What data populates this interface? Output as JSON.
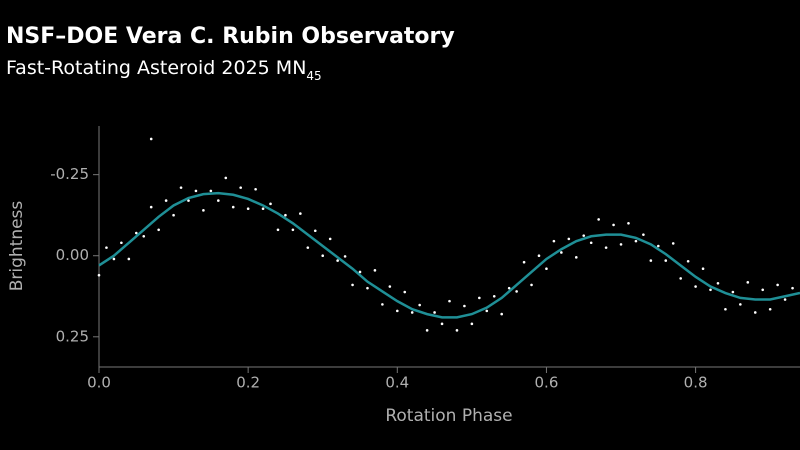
{
  "chart_data": {
    "type": "scatter",
    "title": "NSF–DOE Vera C. Rubin Observatory",
    "subtitle": "Fast-Rotating Asteroid 2025 MN",
    "subtitle_subscript": "45",
    "x_label": "Rotation Phase",
    "y_label": "Brightness",
    "xlim": [
      0,
      0.94
    ],
    "xticks": [
      {
        "value": 0,
        "label": "0.0"
      },
      0.2,
      0.4,
      0.6,
      0.8
    ],
    "ylim": [
      -0.4,
      0.34
    ],
    "y_inverted": true,
    "yticks": [
      -0.25,
      {
        "value": 0,
        "label": "0.00"
      },
      0.25
    ],
    "grid": false,
    "series": [
      {
        "type": "scatter",
        "color": "#ffffff",
        "x": [
          0.0,
          0.01,
          0.02,
          0.03,
          0.04,
          0.05,
          0.06,
          0.07,
          0.08,
          0.09,
          0.1,
          0.11,
          0.12,
          0.13,
          0.14,
          0.15,
          0.16,
          0.17,
          0.18,
          0.19,
          0.2,
          0.21,
          0.22,
          0.23,
          0.24,
          0.25,
          0.26,
          0.27,
          0.28,
          0.29,
          0.3,
          0.31,
          0.32,
          0.33,
          0.34,
          0.35,
          0.36,
          0.37,
          0.38,
          0.39,
          0.4,
          0.41,
          0.42,
          0.43,
          0.44,
          0.45,
          0.46,
          0.47,
          0.48,
          0.49,
          0.5,
          0.51,
          0.52,
          0.53,
          0.54,
          0.55,
          0.56,
          0.57,
          0.58,
          0.59,
          0.6,
          0.61,
          0.62,
          0.63,
          0.64,
          0.65,
          0.66,
          0.67,
          0.68,
          0.69,
          0.7,
          0.71,
          0.72,
          0.73,
          0.74,
          0.75,
          0.76,
          0.77,
          0.78,
          0.79,
          0.8,
          0.81,
          0.82,
          0.83,
          0.84,
          0.85,
          0.86,
          0.87,
          0.88,
          0.89,
          0.9,
          0.91,
          0.92,
          0.93,
          0.07
        ],
        "values": [
          0.06,
          -0.025,
          0.01,
          -0.04,
          0.01,
          -0.07,
          -0.06,
          -0.15,
          -0.08,
          -0.17,
          -0.125,
          -0.21,
          -0.17,
          -0.2,
          -0.14,
          -0.2,
          -0.17,
          -0.24,
          -0.15,
          -0.21,
          -0.145,
          -0.205,
          -0.145,
          -0.16,
          -0.08,
          -0.125,
          -0.08,
          -0.13,
          -0.025,
          -0.077,
          0.0,
          -0.052,
          0.015,
          0.002,
          0.09,
          0.05,
          0.1,
          0.045,
          0.15,
          0.095,
          0.17,
          0.112,
          0.175,
          0.152,
          0.23,
          0.175,
          0.21,
          0.14,
          0.23,
          0.155,
          0.21,
          0.13,
          0.17,
          0.125,
          0.18,
          0.1,
          0.11,
          0.02,
          0.09,
          0.0,
          0.04,
          -0.045,
          -0.01,
          -0.052,
          0.005,
          -0.062,
          -0.04,
          -0.112,
          -0.025,
          -0.095,
          -0.035,
          -0.1,
          -0.045,
          -0.065,
          0.015,
          -0.03,
          0.015,
          -0.038,
          0.07,
          0.017,
          0.095,
          0.04,
          0.105,
          0.085,
          0.165,
          0.112,
          0.15,
          0.082,
          0.175,
          0.105,
          0.165,
          0.09,
          0.135,
          0.1,
          -0.36
        ]
      },
      {
        "type": "line",
        "color": "#1f8f96",
        "x": [
          0.0,
          0.02,
          0.04,
          0.06,
          0.08,
          0.1,
          0.12,
          0.14,
          0.16,
          0.18,
          0.2,
          0.22,
          0.24,
          0.26,
          0.28,
          0.3,
          0.32,
          0.34,
          0.36,
          0.38,
          0.4,
          0.42,
          0.44,
          0.46,
          0.48,
          0.5,
          0.52,
          0.54,
          0.56,
          0.58,
          0.6,
          0.62,
          0.64,
          0.66,
          0.68,
          0.7,
          0.72,
          0.74,
          0.76,
          0.78,
          0.8,
          0.82,
          0.84,
          0.86,
          0.88,
          0.9,
          0.92,
          0.94
        ],
        "values": [
          0.03,
          0.0,
          -0.04,
          -0.08,
          -0.12,
          -0.155,
          -0.178,
          -0.19,
          -0.193,
          -0.188,
          -0.175,
          -0.155,
          -0.13,
          -0.1,
          -0.065,
          -0.03,
          0.005,
          0.04,
          0.08,
          0.11,
          0.14,
          0.165,
          0.18,
          0.19,
          0.19,
          0.18,
          0.16,
          0.13,
          0.09,
          0.05,
          0.01,
          -0.02,
          -0.045,
          -0.06,
          -0.065,
          -0.065,
          -0.055,
          -0.035,
          -0.005,
          0.03,
          0.065,
          0.095,
          0.115,
          0.13,
          0.135,
          0.135,
          0.125,
          0.115
        ]
      }
    ]
  }
}
